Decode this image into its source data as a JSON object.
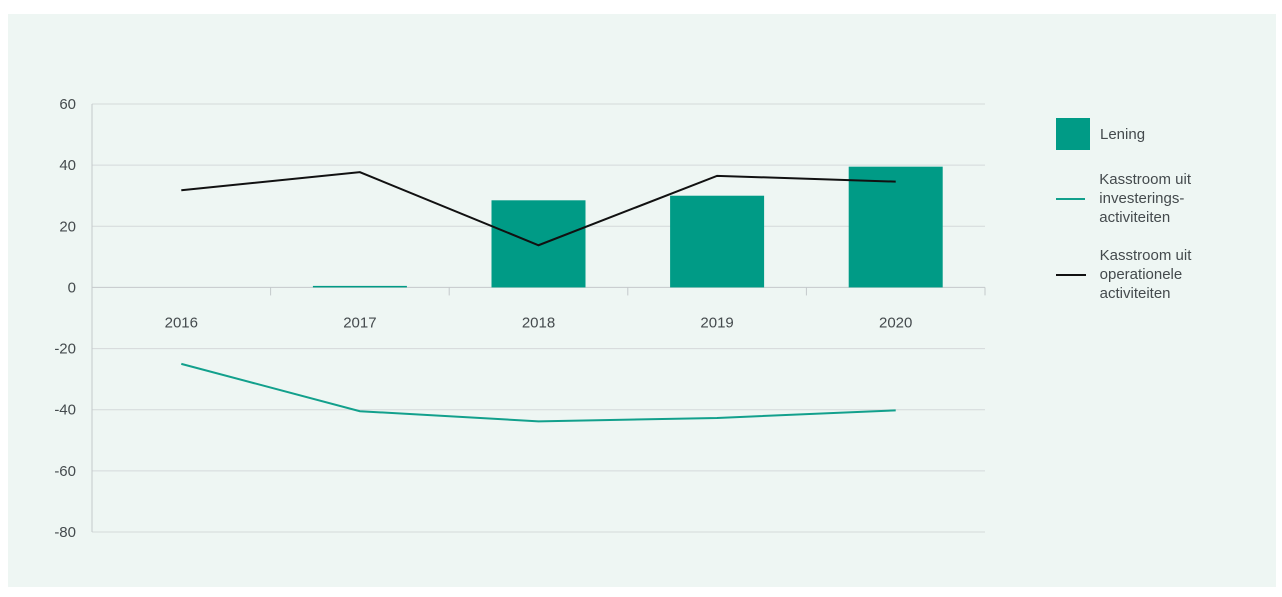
{
  "chart_data": {
    "type": "bar",
    "categories": [
      "2016",
      "2017",
      "2018",
      "2019",
      "2020"
    ],
    "ylim": [
      -80,
      60
    ],
    "yticks": [
      60,
      40,
      20,
      0,
      -20,
      -40,
      -60,
      -80
    ],
    "ytick_labels": [
      "60",
      "40",
      "20",
      "0",
      "-20",
      "-40",
      "-60",
      "-80"
    ],
    "grid": true,
    "legend_position": "right",
    "series": [
      {
        "name": "Lening",
        "kind": "bar",
        "color": "#009b86",
        "values": [
          0,
          0.5,
          28.5,
          30,
          39.5
        ]
      },
      {
        "name": "Kasstroom uit investerings-\nactiviteiten",
        "kind": "line",
        "color": "#12a08c",
        "values": [
          -25,
          -40.5,
          -43.8,
          -42.7,
          -40.2
        ]
      },
      {
        "name": "Kasstroom uit operationele\nactiviteiten",
        "kind": "line",
        "color": "#111111",
        "values": [
          31.8,
          37.7,
          13.8,
          36.5,
          34.6
        ]
      }
    ]
  }
}
